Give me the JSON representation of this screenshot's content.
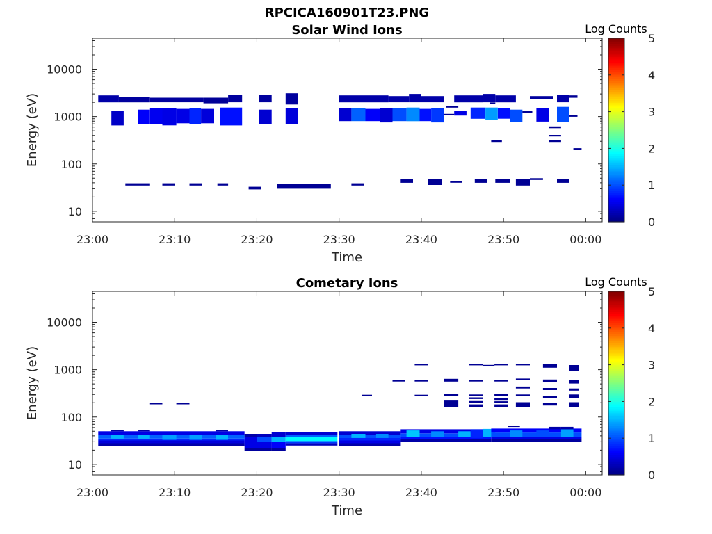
{
  "figure_title": "RPCICA160901T23.PNG",
  "chart_data": [
    {
      "type": "heatmap",
      "title": "Solar Wind Ions",
      "xlabel": "Time",
      "ylabel": "Energy (eV)",
      "x_tick_labels": [
        "23:00",
        "23:10",
        "23:20",
        "23:30",
        "23:40",
        "23:50",
        "00:00"
      ],
      "x_range_minutes": [
        0,
        62
      ],
      "y_scale": "log",
      "y_range": [
        6,
        45000
      ],
      "y_tick_labels": [
        "10",
        "100",
        "1000",
        "10000"
      ],
      "colorbar": {
        "label": "Log Counts",
        "range": [
          0,
          5
        ],
        "tick_labels": [
          "0",
          "1",
          "2",
          "3",
          "4",
          "5"
        ],
        "colormap": "jet"
      },
      "cells": [
        [
          0.7,
          3.2,
          2000,
          2800,
          0.2
        ],
        [
          3.2,
          7.0,
          2000,
          2600,
          0.15
        ],
        [
          7.0,
          13.5,
          2000,
          2500,
          0.15
        ],
        [
          13.5,
          16.5,
          1900,
          2500,
          0.12
        ],
        [
          16.5,
          18.2,
          2000,
          2900,
          0.15
        ],
        [
          20.3,
          21.8,
          2000,
          2900,
          0.15
        ],
        [
          23.5,
          25.0,
          1800,
          3100,
          0.15
        ],
        [
          2.3,
          3.8,
          650,
          1300,
          0.35
        ],
        [
          5.5,
          7.0,
          700,
          1400,
          0.6
        ],
        [
          7.0,
          8.5,
          700,
          1500,
          0.55
        ],
        [
          8.5,
          10.2,
          650,
          1500,
          0.5
        ],
        [
          10.2,
          11.8,
          720,
          1450,
          0.5
        ],
        [
          11.8,
          13.2,
          700,
          1500,
          0.8
        ],
        [
          13.2,
          14.8,
          720,
          1450,
          0.45
        ],
        [
          15.5,
          18.2,
          650,
          1550,
          0.7
        ],
        [
          20.3,
          21.8,
          700,
          1400,
          0.4
        ],
        [
          23.5,
          25.0,
          700,
          1500,
          0.45
        ],
        [
          30.0,
          36.0,
          2000,
          2800,
          0.2
        ],
        [
          36.0,
          38.5,
          2000,
          2700,
          0.2
        ],
        [
          38.5,
          40.0,
          2000,
          3000,
          0.2
        ],
        [
          40.0,
          42.8,
          2000,
          2700,
          0.2
        ],
        [
          44.0,
          47.5,
          2000,
          2800,
          0.2
        ],
        [
          47.5,
          49.0,
          2000,
          3000,
          0.2
        ],
        [
          49.0,
          51.5,
          2000,
          2800,
          0.2
        ],
        [
          53.2,
          56.0,
          2300,
          2700,
          0.15
        ],
        [
          56.5,
          58.0,
          2000,
          2900,
          0.2
        ],
        [
          30.0,
          31.5,
          800,
          1500,
          0.4
        ],
        [
          31.5,
          33.2,
          800,
          1500,
          1.1
        ],
        [
          33.2,
          35.0,
          800,
          1450,
          0.6
        ],
        [
          35.0,
          36.5,
          750,
          1500,
          0.4
        ],
        [
          36.5,
          38.2,
          800,
          1500,
          1.0
        ],
        [
          38.2,
          39.8,
          800,
          1550,
          1.3
        ],
        [
          39.8,
          41.2,
          800,
          1450,
          0.7
        ],
        [
          41.2,
          42.8,
          750,
          1500,
          0.9
        ],
        [
          44.0,
          45.5,
          1050,
          1300,
          0.5
        ],
        [
          46.0,
          47.8,
          900,
          1550,
          0.8
        ],
        [
          47.8,
          49.3,
          850,
          1550,
          1.4
        ],
        [
          49.3,
          50.8,
          900,
          1500,
          0.7
        ],
        [
          50.8,
          52.3,
          780,
          1400,
          1.0
        ],
        [
          54.0,
          55.5,
          780,
          1500,
          0.5
        ],
        [
          56.5,
          58.0,
          780,
          1600,
          1.0
        ],
        [
          4.0,
          7.0,
          35,
          39,
          0.1
        ],
        [
          8.5,
          10.0,
          35,
          39,
          0.1
        ],
        [
          11.8,
          13.3,
          35,
          39,
          0.1
        ],
        [
          15.2,
          16.5,
          35,
          39,
          0.1
        ],
        [
          19.0,
          20.5,
          29,
          33,
          0.1
        ],
        [
          22.5,
          29.0,
          30,
          38,
          0.1
        ],
        [
          31.5,
          33.0,
          35,
          39,
          0.1
        ],
        [
          37.5,
          39.0,
          40,
          48,
          0.1
        ],
        [
          40.8,
          42.5,
          36,
          48,
          0.1
        ],
        [
          43.5,
          45.0,
          40,
          44,
          0.1
        ],
        [
          46.5,
          48.0,
          40,
          48,
          0.1
        ],
        [
          49.0,
          50.8,
          40,
          48,
          0.1
        ],
        [
          51.5,
          53.2,
          35,
          48,
          0.1
        ],
        [
          53.2,
          54.8,
          46,
          50,
          0.1
        ],
        [
          56.5,
          58.0,
          40,
          48,
          0.1
        ],
        [
          58.0,
          59.0,
          2500,
          2800,
          0.1
        ],
        [
          58.0,
          59.0,
          990,
          1060,
          0.1
        ],
        [
          52.3,
          53.5,
          1200,
          1300,
          0.1
        ],
        [
          42.8,
          44.0,
          1060,
          1140,
          0.1
        ],
        [
          43.0,
          44.5,
          1550,
          1650,
          0.1
        ],
        [
          48.3,
          49.0,
          1850,
          1980,
          0.1
        ],
        [
          55.5,
          57.0,
          570,
          620,
          0.1
        ],
        [
          55.5,
          57.0,
          380,
          410,
          0.1
        ],
        [
          55.5,
          57.0,
          290,
          315,
          0.1
        ],
        [
          48.5,
          49.8,
          290,
          315,
          0.1
        ],
        [
          58.5,
          59.5,
          195,
          215,
          0.1
        ]
      ]
    },
    {
      "type": "heatmap",
      "title": "Cometary Ions",
      "xlabel": "Time",
      "ylabel": "Energy (eV)",
      "x_tick_labels": [
        "23:00",
        "23:10",
        "23:20",
        "23:30",
        "23:40",
        "23:50",
        "00:00"
      ],
      "x_range_minutes": [
        0,
        62
      ],
      "y_scale": "log",
      "y_range": [
        6,
        45000
      ],
      "y_tick_labels": [
        "10",
        "100",
        "1000",
        "10000"
      ],
      "colorbar": {
        "label": "Log Counts",
        "range": [
          0,
          5
        ],
        "tick_labels": [
          "0",
          "1",
          "2",
          "3",
          "4",
          "5"
        ],
        "colormap": "jet"
      },
      "cells": [
        [
          0.7,
          18.5,
          24,
          28,
          0.2
        ],
        [
          0.7,
          18.5,
          28,
          32,
          0.45
        ],
        [
          0.7,
          18.5,
          32,
          35,
          0.8
        ],
        [
          0.7,
          18.5,
          35,
          42,
          1.1
        ],
        [
          0.7,
          18.5,
          42,
          50,
          0.5
        ],
        [
          2.2,
          3.8,
          35,
          42,
          1.5
        ],
        [
          5.5,
          7.0,
          35,
          42,
          1.5
        ],
        [
          8.5,
          10.2,
          33,
          42,
          1.4
        ],
        [
          11.8,
          13.3,
          33,
          42,
          1.4
        ],
        [
          15.0,
          16.5,
          33,
          42,
          1.5
        ],
        [
          2.2,
          3.8,
          50,
          54,
          0.2
        ],
        [
          5.5,
          7.0,
          50,
          54,
          0.2
        ],
        [
          15.0,
          16.5,
          50,
          54,
          0.2
        ],
        [
          18.5,
          20.0,
          19,
          22,
          0.15
        ],
        [
          18.5,
          20.0,
          22,
          30,
          0.5
        ],
        [
          18.5,
          20.0,
          30,
          38,
          0.5
        ],
        [
          18.5,
          20.0,
          38,
          44,
          0.2
        ],
        [
          20.0,
          21.8,
          19,
          22,
          0.15
        ],
        [
          20.0,
          21.8,
          22,
          30,
          0.5
        ],
        [
          20.0,
          21.8,
          30,
          38,
          1.0
        ],
        [
          20.0,
          21.8,
          38,
          44,
          0.3
        ],
        [
          21.8,
          23.5,
          19,
          22,
          0.15
        ],
        [
          21.8,
          23.5,
          22,
          30,
          0.6
        ],
        [
          21.8,
          23.5,
          30,
          38,
          1.5
        ],
        [
          21.8,
          23.5,
          38,
          48,
          0.4
        ],
        [
          23.5,
          29.8,
          25,
          28,
          0.3
        ],
        [
          23.5,
          29.8,
          28,
          31,
          0.9
        ],
        [
          23.5,
          29.8,
          31,
          38,
          1.85
        ],
        [
          23.5,
          29.8,
          38,
          42,
          1.1
        ],
        [
          23.5,
          29.8,
          42,
          48,
          0.4
        ],
        [
          30.0,
          37.5,
          24,
          28,
          0.2
        ],
        [
          30.0,
          37.5,
          28,
          32,
          0.5
        ],
        [
          30.0,
          37.5,
          32,
          36,
          0.8
        ],
        [
          30.0,
          37.5,
          36,
          42,
          1.0
        ],
        [
          30.0,
          37.5,
          42,
          50,
          0.4
        ],
        [
          31.5,
          33.2,
          36,
          44,
          1.5
        ],
        [
          34.5,
          36.0,
          36,
          44,
          1.3
        ],
        [
          37.5,
          48.5,
          30,
          34,
          0.2
        ],
        [
          37.5,
          48.5,
          34,
          38,
          0.7
        ],
        [
          37.5,
          48.5,
          38,
          45,
          1.0
        ],
        [
          37.5,
          48.5,
          45,
          55,
          0.5
        ],
        [
          38.2,
          39.8,
          38,
          52,
          1.6
        ],
        [
          41.2,
          42.8,
          38,
          50,
          1.3
        ],
        [
          44.5,
          46.0,
          38,
          50,
          1.5
        ],
        [
          46.0,
          47.5,
          36,
          55,
          0.8
        ],
        [
          47.5,
          49.0,
          38,
          56,
          1.5
        ],
        [
          48.5,
          59.5,
          30,
          34,
          0.15
        ],
        [
          48.5,
          59.5,
          34,
          38,
          0.5
        ],
        [
          48.5,
          59.5,
          38,
          47,
          1.0
        ],
        [
          48.5,
          59.5,
          47,
          57,
          0.6
        ],
        [
          50.8,
          52.3,
          38,
          52,
          1.3
        ],
        [
          54.0,
          55.5,
          38,
          52,
          1.0
        ],
        [
          57.0,
          58.5,
          38,
          55,
          1.4
        ],
        [
          55.5,
          57.0,
          55,
          62,
          0.2
        ],
        [
          57.0,
          58.5,
          55,
          62,
          0.2
        ],
        [
          7.0,
          8.5,
          188,
          198,
          0.1
        ],
        [
          10.2,
          11.8,
          188,
          198,
          0.1
        ],
        [
          32.8,
          34.0,
          280,
          295,
          0.1
        ],
        [
          36.5,
          38.0,
          560,
          600,
          0.1
        ],
        [
          39.2,
          40.8,
          1250,
          1320,
          0.1
        ],
        [
          39.2,
          40.8,
          560,
          600,
          0.1
        ],
        [
          39.2,
          40.8,
          280,
          295,
          0.1
        ],
        [
          42.8,
          44.5,
          560,
          640,
          0.1
        ],
        [
          42.8,
          44.5,
          280,
          310,
          0.1
        ],
        [
          42.8,
          44.5,
          200,
          230,
          0.1
        ],
        [
          42.8,
          44.5,
          160,
          195,
          0.1
        ],
        [
          45.8,
          47.5,
          1250,
          1320,
          0.1
        ],
        [
          45.8,
          47.5,
          560,
          600,
          0.1
        ],
        [
          45.8,
          47.5,
          280,
          300,
          0.1
        ],
        [
          45.8,
          47.5,
          240,
          260,
          0.1
        ],
        [
          45.8,
          47.5,
          200,
          225,
          0.1
        ],
        [
          45.8,
          47.5,
          165,
          185,
          0.1
        ],
        [
          47.5,
          48.9,
          1180,
          1260,
          0.1
        ],
        [
          48.9,
          50.5,
          1250,
          1320,
          0.1
        ],
        [
          48.9,
          50.5,
          560,
          600,
          0.1
        ],
        [
          48.9,
          50.5,
          280,
          310,
          0.1
        ],
        [
          48.9,
          50.5,
          230,
          255,
          0.1
        ],
        [
          48.9,
          50.5,
          195,
          215,
          0.1
        ],
        [
          48.9,
          50.5,
          165,
          185,
          0.1
        ],
        [
          51.5,
          53.2,
          1250,
          1320,
          0.1
        ],
        [
          51.5,
          53.2,
          600,
          650,
          0.1
        ],
        [
          51.5,
          53.2,
          400,
          440,
          0.1
        ],
        [
          51.5,
          53.2,
          280,
          300,
          0.1
        ],
        [
          51.5,
          53.2,
          160,
          205,
          0.1
        ],
        [
          54.8,
          56.5,
          1100,
          1300,
          0.1
        ],
        [
          54.8,
          56.5,
          550,
          620,
          0.1
        ],
        [
          54.8,
          56.5,
          370,
          410,
          0.1
        ],
        [
          54.8,
          56.5,
          250,
          275,
          0.1
        ],
        [
          54.8,
          56.5,
          175,
          195,
          0.1
        ],
        [
          58.0,
          59.2,
          950,
          1250,
          0.1
        ],
        [
          58.0,
          59.2,
          510,
          610,
          0.1
        ],
        [
          58.0,
          59.2,
          360,
          400,
          0.1
        ],
        [
          58.0,
          59.2,
          250,
          300,
          0.1
        ],
        [
          58.0,
          59.2,
          160,
          205,
          0.1
        ],
        [
          50.5,
          52.0,
          62,
          66,
          0.1
        ]
      ]
    }
  ]
}
